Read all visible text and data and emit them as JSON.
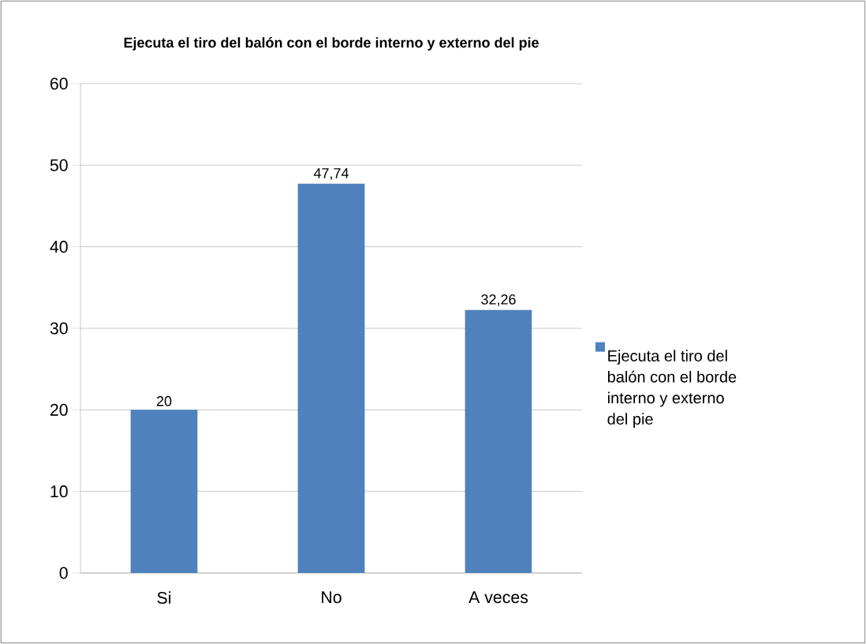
{
  "chart_data": {
    "type": "bar",
    "title": "Ejecuta el tiro del balón con el borde interno y externo del pie",
    "categories": [
      "Si",
      "No",
      "A veces"
    ],
    "series": [
      {
        "name": "Ejecuta el tiro del balón con el borde interno y externo del pie",
        "color": "#4f81bd",
        "values": [
          20,
          47.74,
          32.26
        ],
        "value_labels": [
          "20",
          "47,74",
          "32,26"
        ]
      }
    ],
    "ylim": [
      0,
      60
    ],
    "yticks": [
      0,
      10,
      20,
      30,
      40,
      50,
      60
    ],
    "grid": "y",
    "legend": "right"
  }
}
